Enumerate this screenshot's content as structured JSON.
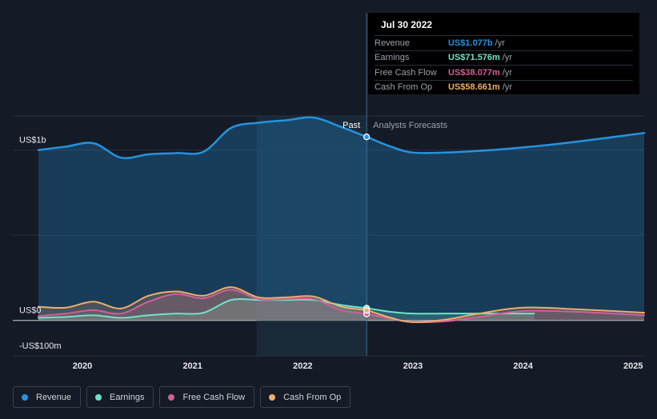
{
  "tooltip": {
    "date": "Jul 30 2022",
    "rows": [
      {
        "label": "Revenue",
        "value": "US$1.077b",
        "unit": "/yr",
        "color": "#2394df"
      },
      {
        "label": "Earnings",
        "value": "US$71.576m",
        "unit": "/yr",
        "color": "#6fe3c9"
      },
      {
        "label": "Free Cash Flow",
        "value": "US$38.077m",
        "unit": "/yr",
        "color": "#d35f9a"
      },
      {
        "label": "Cash From Op",
        "value": "US$58.661m",
        "unit": "/yr",
        "color": "#f0ad6b"
      }
    ]
  },
  "legend": [
    {
      "label": "Revenue",
      "color": "#2394df"
    },
    {
      "label": "Earnings",
      "color": "#6fe3c9"
    },
    {
      "label": "Free Cash Flow",
      "color": "#d35f9a"
    },
    {
      "label": "Cash From Op",
      "color": "#f0ad6b"
    }
  ],
  "chart_data": {
    "type": "line",
    "ylim": [
      -100,
      1200
    ],
    "yticks": [
      {
        "value": 1000,
        "label": "US$1b"
      },
      {
        "value": 0,
        "label": "US$0"
      },
      {
        "value": -100,
        "label": "-US$100m"
      }
    ],
    "xlim": [
      2019.6,
      2025.1
    ],
    "xticks": [
      {
        "value": 2020,
        "label": "2020"
      },
      {
        "value": 2021,
        "label": "2021"
      },
      {
        "value": 2022,
        "label": "2022"
      },
      {
        "value": 2023,
        "label": "2023"
      },
      {
        "value": 2024,
        "label": "2024"
      },
      {
        "value": 2025,
        "label": "2025"
      }
    ],
    "past_start": 2021.58,
    "divider": 2022.58,
    "past_label": "Past",
    "forecast_label": "Analysts Forecasts",
    "series": [
      {
        "name": "Revenue",
        "color": "#2394df",
        "marker": 2022.58,
        "points": [
          [
            2019.6,
            1000
          ],
          [
            2019.85,
            1020
          ],
          [
            2020.1,
            1040
          ],
          [
            2020.35,
            955
          ],
          [
            2020.6,
            975
          ],
          [
            2020.85,
            982
          ],
          [
            2021.1,
            990
          ],
          [
            2021.35,
            1130
          ],
          [
            2021.6,
            1160
          ],
          [
            2021.85,
            1175
          ],
          [
            2022.1,
            1190
          ],
          [
            2022.35,
            1135
          ],
          [
            2022.58,
            1077
          ],
          [
            2022.8,
            1020
          ],
          [
            2023.0,
            985
          ],
          [
            2023.3,
            985
          ],
          [
            2023.6,
            995
          ],
          [
            2024.0,
            1015
          ],
          [
            2024.5,
            1050
          ],
          [
            2025.1,
            1100
          ]
        ]
      },
      {
        "name": "Earnings",
        "color": "#6fe3c9",
        "marker": 2022.58,
        "points": [
          [
            2019.6,
            15
          ],
          [
            2019.85,
            20
          ],
          [
            2020.1,
            30
          ],
          [
            2020.35,
            15
          ],
          [
            2020.6,
            30
          ],
          [
            2020.85,
            40
          ],
          [
            2021.1,
            45
          ],
          [
            2021.35,
            120
          ],
          [
            2021.6,
            120
          ],
          [
            2021.85,
            120
          ],
          [
            2022.1,
            120
          ],
          [
            2022.35,
            90
          ],
          [
            2022.58,
            71.576
          ],
          [
            2022.8,
            50
          ],
          [
            2023.0,
            40
          ],
          [
            2023.3,
            40
          ],
          [
            2023.6,
            40
          ],
          [
            2024.0,
            40
          ],
          [
            2024.1,
            40
          ]
        ]
      },
      {
        "name": "Free Cash Flow",
        "color": "#d35f9a",
        "marker": 2022.58,
        "points": [
          [
            2019.6,
            25
          ],
          [
            2019.85,
            40
          ],
          [
            2020.1,
            60
          ],
          [
            2020.35,
            40
          ],
          [
            2020.6,
            110
          ],
          [
            2020.85,
            155
          ],
          [
            2021.1,
            130
          ],
          [
            2021.35,
            180
          ],
          [
            2021.6,
            125
          ],
          [
            2021.85,
            125
          ],
          [
            2022.1,
            125
          ],
          [
            2022.35,
            60
          ],
          [
            2022.58,
            38.077
          ],
          [
            2022.8,
            10
          ],
          [
            2023.0,
            -10
          ],
          [
            2023.3,
            -5
          ],
          [
            2023.6,
            20
          ],
          [
            2024.0,
            55
          ],
          [
            2024.5,
            50
          ],
          [
            2025.1,
            30
          ]
        ]
      },
      {
        "name": "Cash From Op",
        "color": "#f0ad6b",
        "marker": 2022.58,
        "points": [
          [
            2019.6,
            80
          ],
          [
            2019.85,
            75
          ],
          [
            2020.1,
            110
          ],
          [
            2020.35,
            70
          ],
          [
            2020.6,
            145
          ],
          [
            2020.85,
            170
          ],
          [
            2021.1,
            145
          ],
          [
            2021.35,
            195
          ],
          [
            2021.6,
            135
          ],
          [
            2021.85,
            135
          ],
          [
            2022.1,
            140
          ],
          [
            2022.35,
            80
          ],
          [
            2022.58,
            58.661
          ],
          [
            2022.8,
            15
          ],
          [
            2023.0,
            -10
          ],
          [
            2023.3,
            5
          ],
          [
            2023.6,
            40
          ],
          [
            2024.0,
            75
          ],
          [
            2024.5,
            65
          ],
          [
            2025.1,
            45
          ]
        ]
      }
    ]
  }
}
